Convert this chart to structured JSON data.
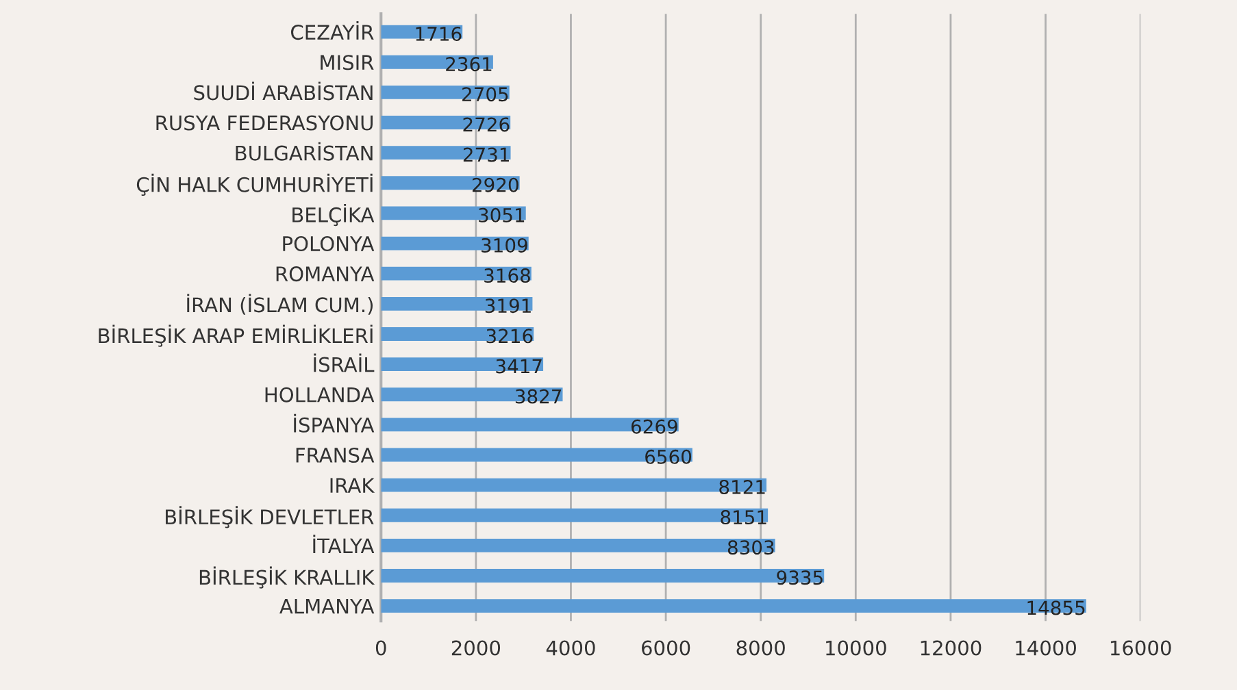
{
  "chart_data": {
    "type": "bar",
    "orientation": "horizontal",
    "categories": [
      "CEZAYİR",
      "MISIR",
      "SUUDİ ARABİSTAN",
      "RUSYA FEDERASYONU",
      "BULGARİSTAN",
      "ÇİN HALK CUMHURİYETİ",
      "BELÇİKA",
      "POLONYA",
      "ROMANYA",
      "İRAN (İSLAM CUM.)",
      "BİRLEŞİK ARAP EMİRLİKLERİ",
      "İSRAİL",
      "HOLLANDA",
      "İSPANYA",
      "FRANSA",
      "IRAK",
      "BİRLEŞİK DEVLETLER",
      "İTALYA",
      "BİRLEŞİK KRALLIK",
      "ALMANYA"
    ],
    "values": [
      1716,
      2361,
      2705,
      2726,
      2731,
      2920,
      3051,
      3109,
      3168,
      3191,
      3216,
      3417,
      3827,
      6269,
      6560,
      8121,
      8151,
      8303,
      9335,
      14855
    ],
    "color": "#5b9bd5",
    "xlim": [
      0,
      16000
    ],
    "xticks": [
      0,
      2000,
      4000,
      6000,
      8000,
      10000,
      12000,
      14000,
      16000
    ],
    "grid": "x",
    "data_labels": true
  }
}
